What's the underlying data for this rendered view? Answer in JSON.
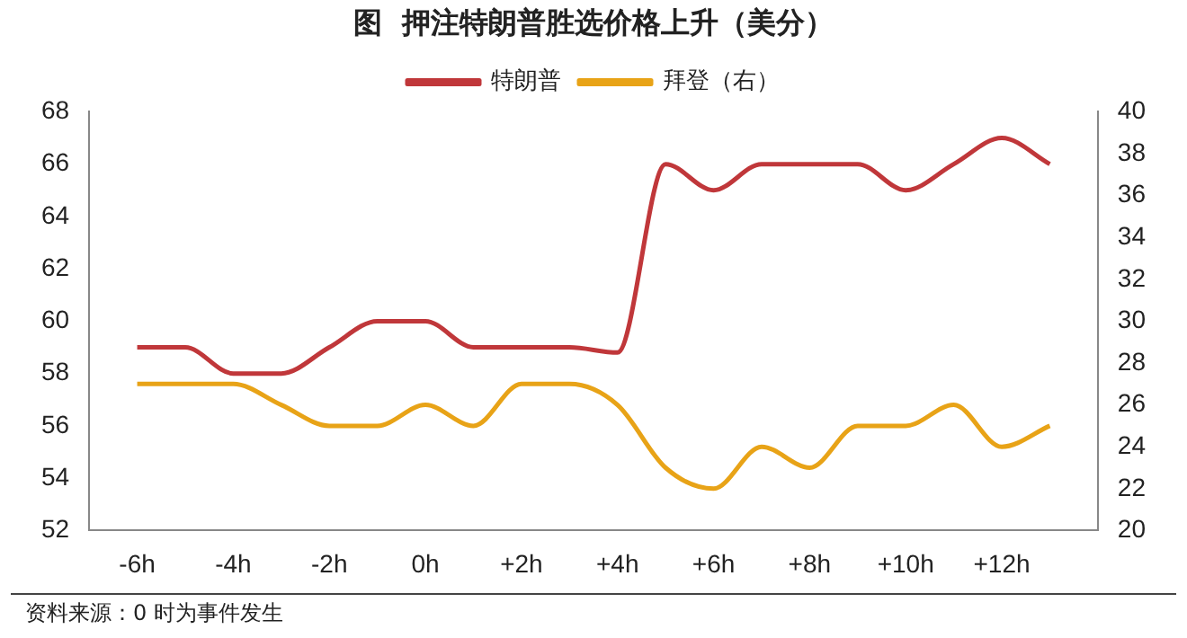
{
  "chart_data": {
    "type": "line",
    "title": "图  押注特朗普胜选价格上升（美分）",
    "x": [
      -6,
      -5,
      -4,
      -3,
      -2,
      -1,
      0,
      1,
      2,
      3,
      4,
      5,
      6,
      7,
      8,
      9,
      10,
      11,
      12,
      13
    ],
    "series": [
      {
        "name": "特朗普",
        "color": "#c0373a",
        "values": [
          59,
          59,
          58,
          58,
          59,
          60,
          60,
          59,
          59,
          59,
          58.8,
          66,
          65,
          66,
          66,
          66,
          65,
          66,
          67,
          66
        ]
      },
      {
        "name": "拜登（右）",
        "color": "#e8a317",
        "axis": "y2",
        "values": [
          27,
          27,
          27,
          26,
          25,
          25,
          26,
          25,
          27,
          27,
          26,
          23,
          22,
          24,
          23,
          25,
          25,
          26,
          24,
          25
        ]
      }
    ],
    "xlim": [
      -7,
      14
    ],
    "xticks": [
      {
        "value": -6,
        "label": "-6h"
      },
      {
        "value": -4,
        "label": "-4h"
      },
      {
        "value": -2,
        "label": "-2h"
      },
      {
        "value": 0,
        "label": "0h"
      },
      {
        "value": 2,
        "label": "+2h"
      },
      {
        "value": 4,
        "label": "+4h"
      },
      {
        "value": 6,
        "label": "+6h"
      },
      {
        "value": 8,
        "label": "+8h"
      },
      {
        "value": 10,
        "label": "+10h"
      },
      {
        "value": 12,
        "label": "+12h"
      }
    ],
    "ylim": [
      52,
      68
    ],
    "yticks": [
      52,
      54,
      56,
      58,
      60,
      62,
      64,
      66,
      68
    ],
    "y2lim": [
      20,
      40
    ],
    "y2ticks": [
      20,
      22,
      24,
      26,
      28,
      30,
      32,
      34,
      36,
      38,
      40
    ],
    "legend": "top",
    "grid": false,
    "marker": "none",
    "line_style": "solid",
    "annotations": [
      "资料来源：0 时为事件发生"
    ]
  }
}
